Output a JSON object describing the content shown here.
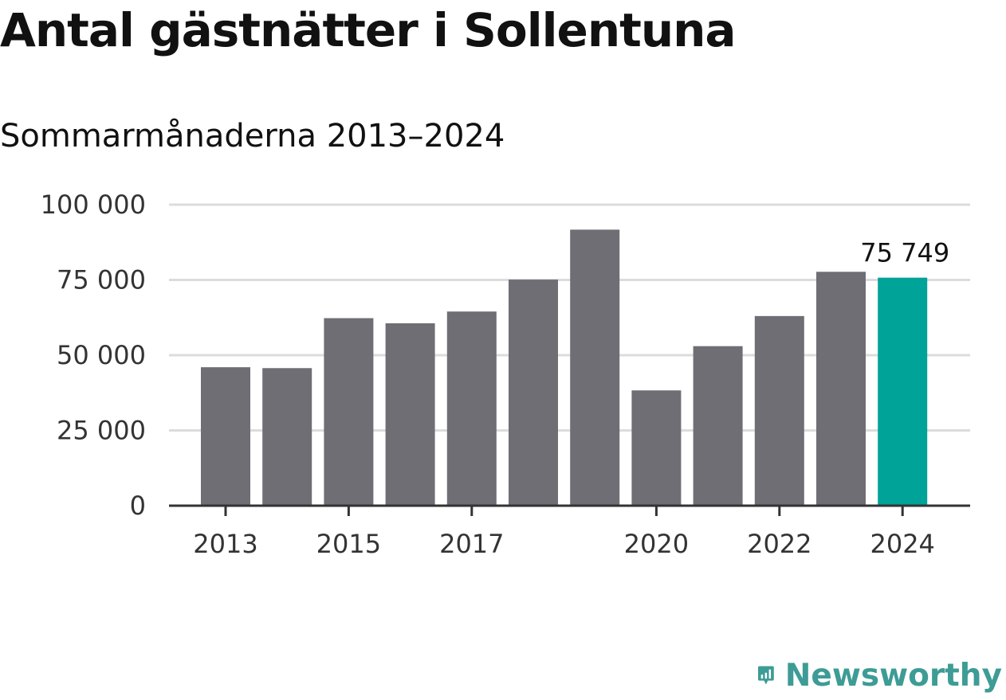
{
  "title": "Antal gästnätter i Sollentuna",
  "subtitle": "Sommarmånaderna 2013–2024",
  "brand": {
    "name": "Newsworthy",
    "icon": "newsworthy-logo-icon",
    "color": "#3d9c95"
  },
  "colors": {
    "bar": "#6f6e75",
    "highlight": "#00a398",
    "grid": "#dcdcdc",
    "axis": "#333333"
  },
  "chart_data": {
    "type": "bar",
    "categories": [
      "2013",
      "2014",
      "2015",
      "2016",
      "2017",
      "2018",
      "2019",
      "2020",
      "2021",
      "2022",
      "2023",
      "2024"
    ],
    "values": [
      46000,
      45700,
      62300,
      60600,
      64500,
      75100,
      91700,
      38300,
      53000,
      63000,
      77700,
      75749
    ],
    "x_tick_labels": [
      "2013",
      "",
      "2015",
      "",
      "2017",
      "",
      "",
      "2020",
      "",
      "2022",
      "",
      "2024"
    ],
    "y_ticks": [
      0,
      25000,
      50000,
      75000,
      100000
    ],
    "y_tick_labels": [
      "0",
      "25 000",
      "50 000",
      "75 000",
      "100 000"
    ],
    "ylim": [
      0,
      100000
    ],
    "highlight_index": 11,
    "value_label": "75 749",
    "grid": true,
    "legend": false
  }
}
